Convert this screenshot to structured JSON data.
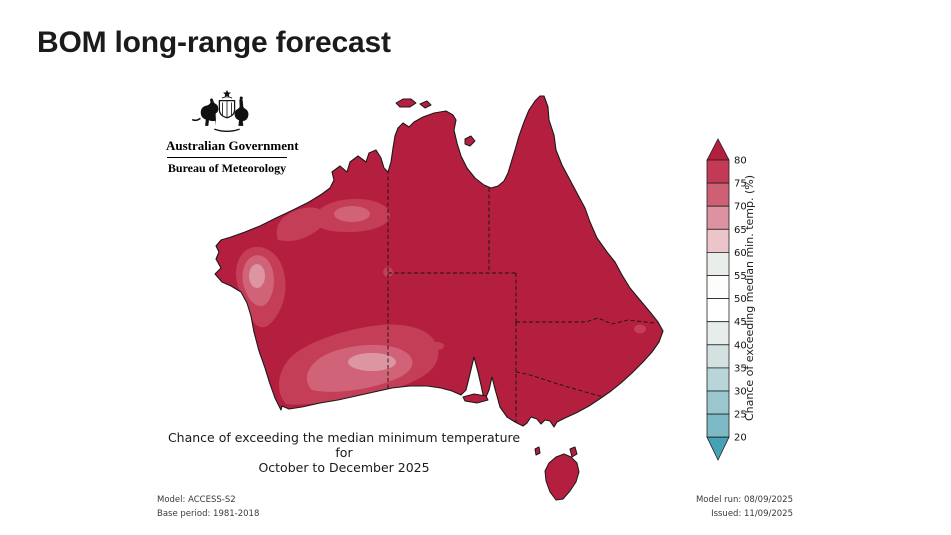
{
  "page": {
    "title": "BOM long-range forecast"
  },
  "logo": {
    "government": "Australian Government",
    "agency": "Bureau of Meteorology"
  },
  "caption": {
    "line1": "Chance of exceeding the median minimum temperature for",
    "line2": "October to December 2025"
  },
  "footnotes": {
    "model": "Model: ACCESS-S2",
    "base_period": "Base period: 1981-2018",
    "model_run": "Model run: 08/09/2025",
    "issued": "Issued: 11/09/2025"
  },
  "legend": {
    "title": "Chance of exceeding median min. temp. (%)",
    "ticks": [
      "80",
      "75",
      "70",
      "65",
      "60",
      "55",
      "50",
      "45",
      "40",
      "35",
      "30",
      "25",
      "20"
    ],
    "segment_colors_top_to_bottom": [
      "#c23a53",
      "#ce5f74",
      "#dc92a0",
      "#ecc5cb",
      "#e9eeeb",
      "#fdfdfc",
      "#ffffff",
      "#e7edeb",
      "#d3e1e1",
      "#b8d5d9",
      "#9ac7ce",
      "#7cb9c5"
    ],
    "arrow_top_color": "#b51f3f",
    "arrow_bottom_color": "#46a2b7"
  },
  "map": {
    "region": "Australia",
    "colors": {
      "base_above_80": "#b51f3f",
      "band_75_80": "#c43e57",
      "band_70_75": "#d06378",
      "band_65_70": "#dd95a2",
      "outline": "#1a1a1a"
    }
  },
  "chart_data": {
    "type": "heatmap",
    "title": "Chance of exceeding the median minimum temperature for October to December 2025",
    "colorbar_label": "Chance of exceeding median min. temp. (%)",
    "colorbar_ticks": [
      80,
      75,
      70,
      65,
      60,
      55,
      50,
      45,
      40,
      35,
      30,
      25,
      20
    ],
    "regions": [
      {
        "area": "Most of Australia (NT, QLD, NSW, VIC, SA, TAS and most of WA)",
        "value_percent": ">80"
      },
      {
        "area": "Central-west coastal Western Australia",
        "value_percent": "70-80"
      },
      {
        "area": "Southern inland Western Australia",
        "value_percent": "65-80"
      },
      {
        "area": "Small spots in far-west SA and on the northern NSW coast",
        "value_percent": "75-80"
      }
    ]
  }
}
